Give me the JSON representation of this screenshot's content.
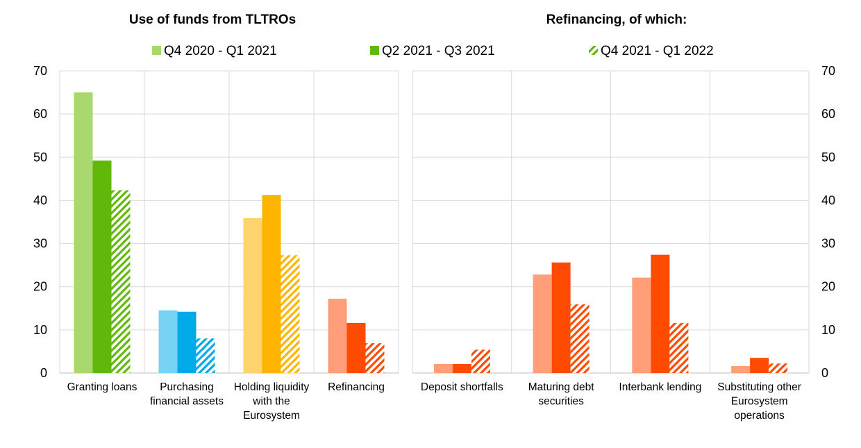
{
  "legend": [
    {
      "label": "Q4 2020 - Q1 2021",
      "swatch": "#a6d96a",
      "pattern": "solid"
    },
    {
      "label": "Q2 2021 - Q3 2021",
      "swatch": "#5fb80b",
      "pattern": "solid"
    },
    {
      "label": "Q4 2021 - Q1 2022",
      "swatch": "#5fb80b",
      "pattern": "hatch"
    }
  ],
  "colors": {
    "gridline": "#d9d9d9",
    "green_light": "#a9d86e",
    "green": "#61b80b",
    "blue_light": "#78d2f2",
    "blue": "#00a9e8",
    "yellow_light": "#ffd46e",
    "yellow": "#ffb400",
    "orange_light": "#ff9e78",
    "orange": "#ff4b00"
  },
  "chart_data": [
    {
      "type": "bar",
      "title": "Use of funds from TLTROs",
      "categories": [
        "Granting loans",
        "Purchasing financial assets",
        "Holding liquidity with the Eurosystem",
        "Refinancing"
      ],
      "category_lines": [
        [
          "Granting loans"
        ],
        [
          "Purchasing",
          "financial assets"
        ],
        [
          "Holding liquidity",
          "with the",
          "Eurosystem"
        ],
        [
          "Refinancing"
        ]
      ],
      "series": [
        {
          "name": "Q4 2020 - Q1 2021",
          "values": [
            65,
            14.5,
            35.9,
            17.2
          ]
        },
        {
          "name": "Q2 2021 - Q3 2021",
          "values": [
            49.2,
            14.2,
            41.2,
            11.6
          ]
        },
        {
          "name": "Q4 2021 - Q1 2022",
          "values": [
            42.3,
            8,
            27.3,
            6.9
          ]
        }
      ],
      "bar_colors": [
        [
          "green_light",
          "green"
        ],
        [
          "blue_light",
          "blue"
        ],
        [
          "yellow_light",
          "yellow"
        ],
        [
          "orange_light",
          "orange"
        ]
      ],
      "ylim": [
        0,
        70
      ],
      "yticks": [
        0,
        10,
        20,
        30,
        40,
        50,
        60,
        70
      ],
      "axis_side": "left",
      "grid": true
    },
    {
      "type": "bar",
      "title": "Refinancing, of which:",
      "categories": [
        "Deposit shortfalls",
        "Maturing debt securities",
        "Interbank lending",
        "Substituting other Eurosystem operations"
      ],
      "category_lines": [
        [
          "Deposit shortfalls"
        ],
        [
          "Maturing debt",
          "securities"
        ],
        [
          "Interbank lending"
        ],
        [
          "Substituting other",
          "Eurosystem",
          "operations"
        ]
      ],
      "series": [
        {
          "name": "Q4 2020 - Q1 2021",
          "values": [
            2.1,
            22.8,
            22.1,
            1.6
          ]
        },
        {
          "name": "Q2 2021 - Q3 2021",
          "values": [
            2.1,
            25.6,
            27.4,
            3.5
          ]
        },
        {
          "name": "Q4 2021 - Q1 2022",
          "values": [
            5.4,
            15.9,
            11.6,
            2.2
          ]
        }
      ],
      "bar_colors": [
        [
          "orange_light",
          "orange"
        ],
        [
          "orange_light",
          "orange"
        ],
        [
          "orange_light",
          "orange"
        ],
        [
          "orange_light",
          "orange"
        ]
      ],
      "ylim": [
        0,
        70
      ],
      "yticks": [
        0,
        10,
        20,
        30,
        40,
        50,
        60,
        70
      ],
      "axis_side": "right",
      "grid": true
    }
  ]
}
